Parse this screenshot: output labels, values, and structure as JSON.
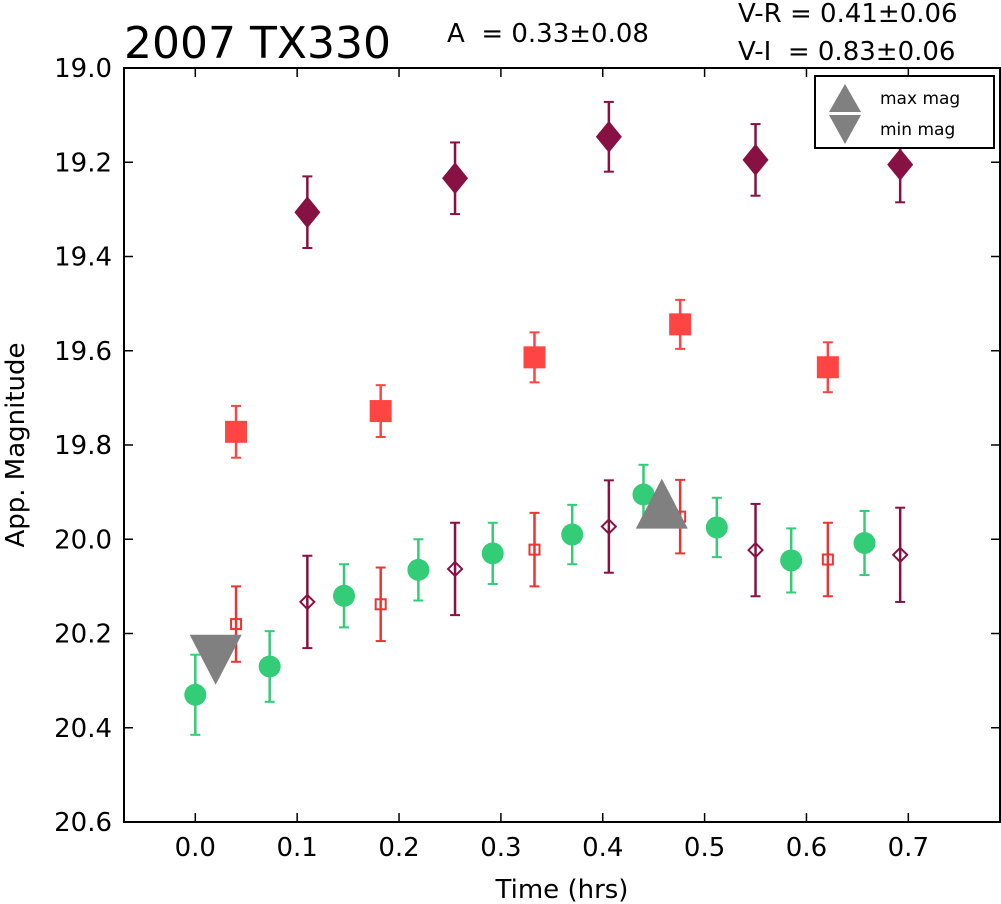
{
  "chart_data": {
    "type": "scatter",
    "title": "2007 TX330",
    "amplitude_label": "A  = 0.33±0.08",
    "color_index_labels": [
      "V-R = 0.41±0.06",
      "V-I  = 0.83±0.06"
    ],
    "xlabel": "Time (hrs)",
    "ylabel": "App. Magnitude",
    "xlim": [
      -0.07,
      0.79
    ],
    "ylim": [
      20.6,
      19.0
    ],
    "y_inverted": true,
    "xticks": [
      "0.0",
      "0.1",
      "0.2",
      "0.3",
      "0.4",
      "0.5",
      "0.6",
      "0.7"
    ],
    "xtick_values": [
      0.0,
      0.1,
      0.2,
      0.3,
      0.4,
      0.5,
      0.6,
      0.7
    ],
    "yticks": [
      "19.0",
      "19.2",
      "19.4",
      "19.6",
      "19.8",
      "20.0",
      "20.2",
      "20.4",
      "20.6"
    ],
    "ytick_values": [
      19.0,
      19.2,
      19.4,
      19.6,
      19.8,
      20.0,
      20.2,
      20.4,
      20.6
    ],
    "grid": false,
    "legend": {
      "placement": "top-right",
      "entries": [
        {
          "label": "max mag",
          "marker": "triangle-up",
          "color": "#808080"
        },
        {
          "label": "min mag",
          "marker": "triangle-down",
          "color": "#808080"
        }
      ]
    },
    "series": [
      {
        "marker": "circle",
        "filled": true,
        "color": "#33cc77",
        "points": [
          {
            "x": 0.0,
            "y": 20.33,
            "err": 0.085
          },
          {
            "x": 0.073,
            "y": 20.27,
            "err": 0.075
          },
          {
            "x": 0.146,
            "y": 20.12,
            "err": 0.067
          },
          {
            "x": 0.219,
            "y": 20.065,
            "err": 0.065
          },
          {
            "x": 0.292,
            "y": 20.03,
            "err": 0.065
          },
          {
            "x": 0.37,
            "y": 19.99,
            "err": 0.063
          },
          {
            "x": 0.44,
            "y": 19.905,
            "err": 0.063
          },
          {
            "x": 0.512,
            "y": 19.975,
            "err": 0.063
          },
          {
            "x": 0.585,
            "y": 20.045,
            "err": 0.068
          },
          {
            "x": 0.657,
            "y": 20.008,
            "err": 0.068
          }
        ]
      },
      {
        "marker": "square",
        "filled": false,
        "color": "#ee3333",
        "points": [
          {
            "x": 0.04,
            "y": 20.18,
            "err": 0.08
          },
          {
            "x": 0.182,
            "y": 20.138,
            "err": 0.078
          },
          {
            "x": 0.333,
            "y": 20.022,
            "err": 0.078
          },
          {
            "x": 0.476,
            "y": 19.952,
            "err": 0.078
          },
          {
            "x": 0.621,
            "y": 20.043,
            "err": 0.078
          }
        ]
      },
      {
        "marker": "diamond",
        "filled": false,
        "color": "#881144",
        "points": [
          {
            "x": 0.11,
            "y": 20.133,
            "err": 0.098
          },
          {
            "x": 0.255,
            "y": 20.063,
            "err": 0.098
          },
          {
            "x": 0.406,
            "y": 19.973,
            "err": 0.098
          },
          {
            "x": 0.55,
            "y": 20.023,
            "err": 0.098
          },
          {
            "x": 0.692,
            "y": 20.033,
            "err": 0.1
          }
        ]
      },
      {
        "marker": "square",
        "filled": true,
        "color": "#ff4444",
        "points": [
          {
            "x": 0.04,
            "y": 19.772,
            "err": 0.055
          },
          {
            "x": 0.182,
            "y": 19.728,
            "err": 0.055
          },
          {
            "x": 0.333,
            "y": 19.614,
            "err": 0.053
          },
          {
            "x": 0.476,
            "y": 19.544,
            "err": 0.052
          },
          {
            "x": 0.621,
            "y": 19.635,
            "err": 0.053
          }
        ]
      },
      {
        "marker": "diamond",
        "filled": true,
        "color": "#881144",
        "points": [
          {
            "x": 0.11,
            "y": 19.306,
            "err": 0.076
          },
          {
            "x": 0.255,
            "y": 19.234,
            "err": 0.076
          },
          {
            "x": 0.406,
            "y": 19.146,
            "err": 0.074
          },
          {
            "x": 0.55,
            "y": 19.195,
            "err": 0.076
          },
          {
            "x": 0.692,
            "y": 19.205,
            "err": 0.08
          }
        ]
      }
    ],
    "extrema": [
      {
        "label": "max mag",
        "marker": "triangle-up",
        "x": 0.458,
        "y": 19.935,
        "color": "#808080"
      },
      {
        "label": "min mag",
        "marker": "triangle-down",
        "x": 0.02,
        "y": 20.245,
        "color": "#808080"
      }
    ]
  }
}
